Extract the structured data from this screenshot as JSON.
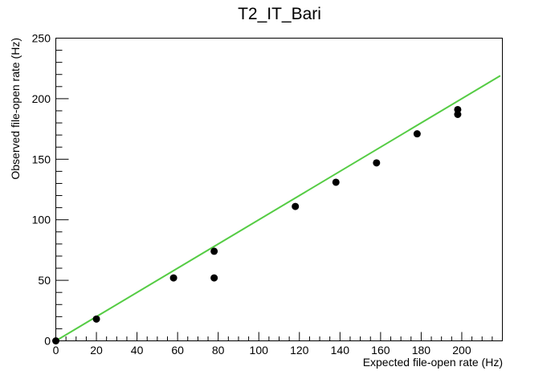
{
  "chart_data": {
    "type": "scatter",
    "title": "T2_IT_Bari",
    "xlabel": "Expected file-open rate (Hz)",
    "ylabel": "Observed file-open rate (Hz)",
    "xlim": [
      0,
      220
    ],
    "ylim": [
      0,
      250
    ],
    "x_ticks": [
      0,
      20,
      40,
      60,
      80,
      100,
      120,
      140,
      160,
      180,
      200
    ],
    "y_ticks": [
      0,
      50,
      100,
      150,
      200,
      250
    ],
    "grid": false,
    "series": [
      {
        "type": "scatter",
        "color": "#000000",
        "points": [
          [
            0,
            0
          ],
          [
            20,
            18
          ],
          [
            58,
            52
          ],
          [
            78,
            74
          ],
          [
            78,
            52
          ],
          [
            118,
            111
          ],
          [
            138,
            131
          ],
          [
            158,
            147
          ],
          [
            178,
            171
          ],
          [
            198,
            191
          ],
          [
            198,
            187
          ]
        ]
      },
      {
        "type": "line",
        "color": "#55cc44",
        "points": [
          [
            0,
            0
          ],
          [
            219,
            219
          ]
        ]
      }
    ]
  }
}
